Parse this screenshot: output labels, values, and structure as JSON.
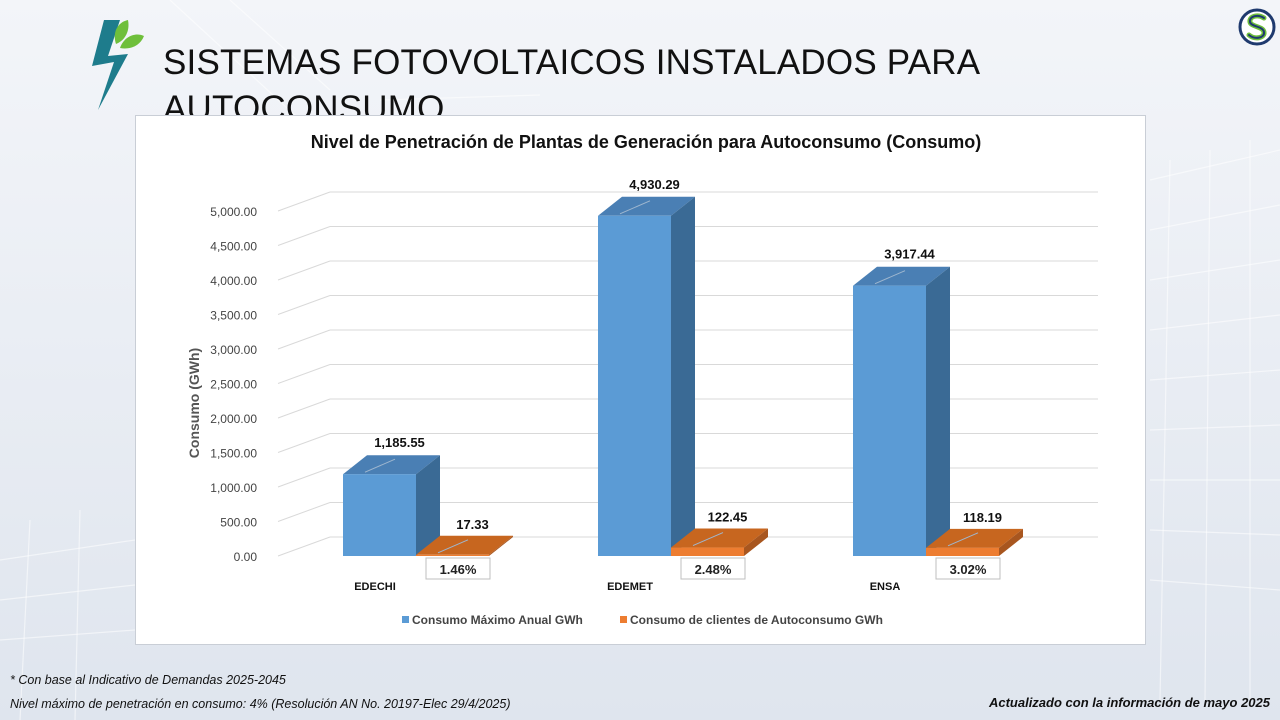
{
  "slide": {
    "title": "SISTEMAS FOTOVOLTAICOS INSTALADOS PARA AUTOCONSUMO",
    "footnote_1": "* Con base al  Indicativo de Demandas 2025-2045",
    "footnote_2": "Nivel máximo de penetración en consumo: 4% (Resolución AN No. 20197-Elec 29/4/2025)",
    "updated": "Actualizado con la información de mayo 2025"
  },
  "colors": {
    "series_1_front": "#5b9bd5",
    "series_1_side": "#3a6a95",
    "series_1_top": "#4a7fb4",
    "series_2_front": "#ed7d31",
    "series_2_side": "#a8561f",
    "series_2_top": "#c7661f",
    "logo_teal": "#1e7c8c",
    "logo_green": "#6fbf3b",
    "brand_navy": "#1f3a6e"
  },
  "chart_data": {
    "type": "bar",
    "title": "Nivel de Penetración de Plantas de Generación para Autoconsumo (Consumo)",
    "ylabel": "Consumo (GWh)",
    "xlabel": "",
    "ylim": [
      0,
      5000
    ],
    "yticks": [
      "0.00",
      "500.00",
      "1,000.00",
      "1,500.00",
      "2,000.00",
      "2,500.00",
      "3,000.00",
      "3,500.00",
      "4,000.00",
      "4,500.00",
      "5,000.00"
    ],
    "categories": [
      "EDECHI",
      "EDEMET",
      "ENSA"
    ],
    "series": [
      {
        "name": "Consumo Máximo Anual GWh",
        "values": [
          1185.55,
          4930.29,
          3917.44
        ],
        "labels": [
          "1,185.55",
          "4,930.29",
          "3,917.44"
        ]
      },
      {
        "name": "Consumo de clientes de Autoconsumo GWh",
        "values": [
          17.33,
          122.45,
          118.19
        ],
        "labels": [
          "17.33",
          "122.45",
          "118.19"
        ]
      }
    ],
    "annotations": [
      "1.46%",
      "2.48%",
      "3.02%"
    ],
    "grid": true,
    "legend_position": "bottom"
  }
}
